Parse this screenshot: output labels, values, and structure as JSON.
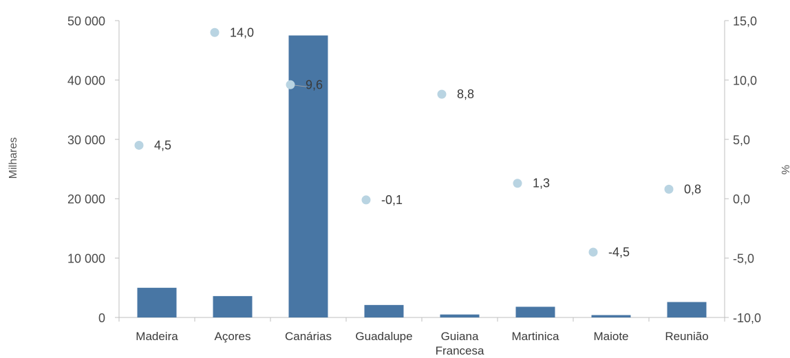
{
  "chart_data": {
    "type": "bar",
    "categories": [
      "Madeira",
      "Açores",
      "Canárias",
      "Guadalupe",
      "Guiana Francesa",
      "Martinica",
      "Maiote",
      "Reunião"
    ],
    "category_lines": [
      [
        "Madeira"
      ],
      [
        "Açores"
      ],
      [
        "Canárias"
      ],
      [
        "Guadalupe"
      ],
      [
        "Guiana",
        "Francesa"
      ],
      [
        "Martinica"
      ],
      [
        "Maiote"
      ],
      [
        "Reunião"
      ]
    ],
    "series": [
      {
        "type": "bar",
        "axis": "left",
        "values": [
          5000,
          3600,
          47500,
          2100,
          500,
          1800,
          400,
          2600
        ]
      },
      {
        "type": "scatter",
        "axis": "right",
        "values": [
          4.5,
          14.0,
          9.6,
          -0.1,
          8.8,
          1.3,
          -4.5,
          0.8
        ]
      }
    ],
    "point_labels": [
      "4,5",
      "14,0",
      "9,6",
      "-0,1",
      "8,8",
      "1,3",
      "-4,5",
      "0,8"
    ],
    "ylabel": "Milhares",
    "y2label": "%",
    "ylim": [
      0,
      50000
    ],
    "y2lim": [
      -10,
      15
    ],
    "yticks": [
      0,
      10000,
      20000,
      30000,
      40000,
      50000
    ],
    "ytick_labels": [
      "0",
      "10 000",
      "20 000",
      "30 000",
      "40 000",
      "50 000"
    ],
    "y2ticks": [
      -10,
      -5,
      0,
      5,
      10,
      15
    ],
    "y2tick_labels": [
      "-10,0",
      "-5,0",
      "0,0",
      "5,0",
      "10,0",
      "15,0"
    ],
    "grid": false,
    "legend": "none",
    "colors": {
      "bar": "#4876a4",
      "point": "#b9d4e2",
      "axis": "#bfbfbf",
      "text": "#3a3a3a"
    }
  }
}
